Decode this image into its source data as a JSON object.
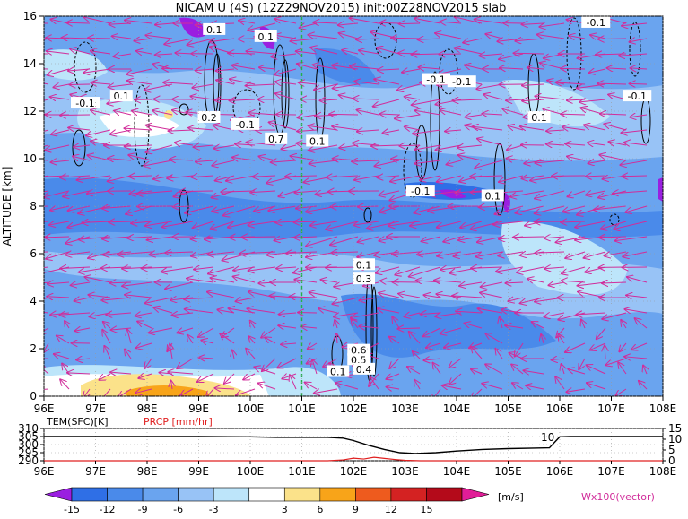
{
  "chart_data": [
    {
      "type": "heatmap",
      "title": "NICAM U (4S) (12Z29NOV2015) init:00Z28NOV2015 slab",
      "xlabel": "",
      "ylabel": "ALTITUDE [km]",
      "x_ticks": [
        "96E",
        "97E",
        "98E",
        "99E",
        "100E",
        "101E",
        "102E",
        "103E",
        "104E",
        "105E",
        "106E",
        "107E",
        "108E"
      ],
      "xlim": [
        96,
        108
      ],
      "y_ticks": [
        "0",
        "2",
        "4",
        "6",
        "8",
        "10",
        "12",
        "14",
        "16"
      ],
      "ylim": [
        0,
        16
      ],
      "contour_labels": [
        {
          "text": "0.1",
          "x": 99.3,
          "y": 15.4
        },
        {
          "text": "0.1",
          "x": 100.3,
          "y": 15.1
        },
        {
          "text": "-0.1",
          "x": 106.7,
          "y": 15.7
        },
        {
          "text": "-0.1",
          "x": 103.6,
          "y": 13.3
        },
        {
          "text": "-0.1",
          "x": 104.1,
          "y": 13.2
        },
        {
          "text": "-0.1",
          "x": 107.5,
          "y": 12.6
        },
        {
          "text": "-0.1",
          "x": 96.8,
          "y": 12.3
        },
        {
          "text": "0.1",
          "x": 97.5,
          "y": 12.6
        },
        {
          "text": "0.2",
          "x": 99.2,
          "y": 11.7
        },
        {
          "text": "-0.1",
          "x": 99.9,
          "y": 11.4
        },
        {
          "text": "0.1",
          "x": 105.6,
          "y": 11.7
        },
        {
          "text": "0.7",
          "x": 100.5,
          "y": 10.8
        },
        {
          "text": "0.1",
          "x": 101.3,
          "y": 10.7
        },
        {
          "text": "-0.1",
          "x": 103.3,
          "y": 8.6
        },
        {
          "text": "0.1",
          "x": 104.7,
          "y": 8.4
        },
        {
          "text": "0.1",
          "x": 102.2,
          "y": 5.5
        },
        {
          "text": "0.3",
          "x": 102.2,
          "y": 4.9
        },
        {
          "text": "0.6",
          "x": 102.1,
          "y": 1.9
        },
        {
          "text": "0.5",
          "x": 102.1,
          "y": 1.5
        },
        {
          "text": "0.1",
          "x": 101.7,
          "y": 1.0
        },
        {
          "text": "0.4",
          "x": 102.2,
          "y": 1.1
        }
      ],
      "colorbar": {
        "ticks": [
          "-15",
          "-12",
          "-9",
          "-6",
          "-3",
          "3",
          "6",
          "9",
          "12",
          "15"
        ],
        "unit": "[m/s]",
        "colors": [
          "#9a1fe0",
          "#2f6fe6",
          "#4a8aea",
          "#6aa4ef",
          "#98c3f6",
          "#bde5fa",
          "#ffffff",
          "#fbe28a",
          "#f8a419",
          "#ee5b1e",
          "#d42222",
          "#b40a1a",
          "#e11d97"
        ]
      },
      "vector_label": "Wx100(vector)",
      "vector_color": "#d12c9a",
      "marker_line": {
        "x": 101.0,
        "color": "#22b14c"
      }
    },
    {
      "type": "line",
      "title": "",
      "left_label": "TEM(SFC)[K]",
      "right_label": "PRCP [mm/hr]",
      "x_ticks": [
        "96E",
        "97E",
        "98E",
        "99E",
        "100E",
        "101E",
        "102E",
        "103E",
        "104E",
        "105E",
        "106E",
        "107E",
        "108E"
      ],
      "xlim": [
        96,
        108
      ],
      "y_left_ticks": [
        "290",
        "295",
        "300",
        "305",
        "310"
      ],
      "y_left_lim": [
        290,
        310
      ],
      "y_right_ticks": [
        "0",
        "5",
        "10",
        "15"
      ],
      "y_right_lim": [
        0,
        15
      ],
      "series": [
        {
          "color": "#000000",
          "x": [
            96,
            97,
            98,
            99,
            100,
            100.5,
            101,
            101.5,
            101.8,
            102,
            102.3,
            102.6,
            102.9,
            103.2,
            103.6,
            104,
            104.5,
            105,
            105.5,
            105.8,
            106.0,
            106.2,
            107,
            108
          ],
          "y": [
            305,
            305,
            305,
            305,
            304.8,
            304.5,
            304.5,
            304.5,
            304,
            302.5,
            299.5,
            297,
            295,
            294.5,
            295,
            296,
            297,
            297.5,
            297.8,
            298,
            304.8,
            305,
            305,
            305
          ]
        },
        {
          "color": "#e02020",
          "x": [
            96,
            100,
            101,
            101.5,
            101.8,
            102.0,
            102.2,
            102.4,
            102.6,
            102.8,
            103,
            103.3,
            108
          ],
          "y": [
            0,
            0,
            0,
            0,
            0.4,
            1.2,
            0.8,
            1.6,
            1.1,
            0.6,
            0.2,
            0,
            0
          ]
        }
      ],
      "annotations": [
        {
          "text": "10",
          "x": 105.9,
          "y": 304.5
        }
      ]
    }
  ]
}
